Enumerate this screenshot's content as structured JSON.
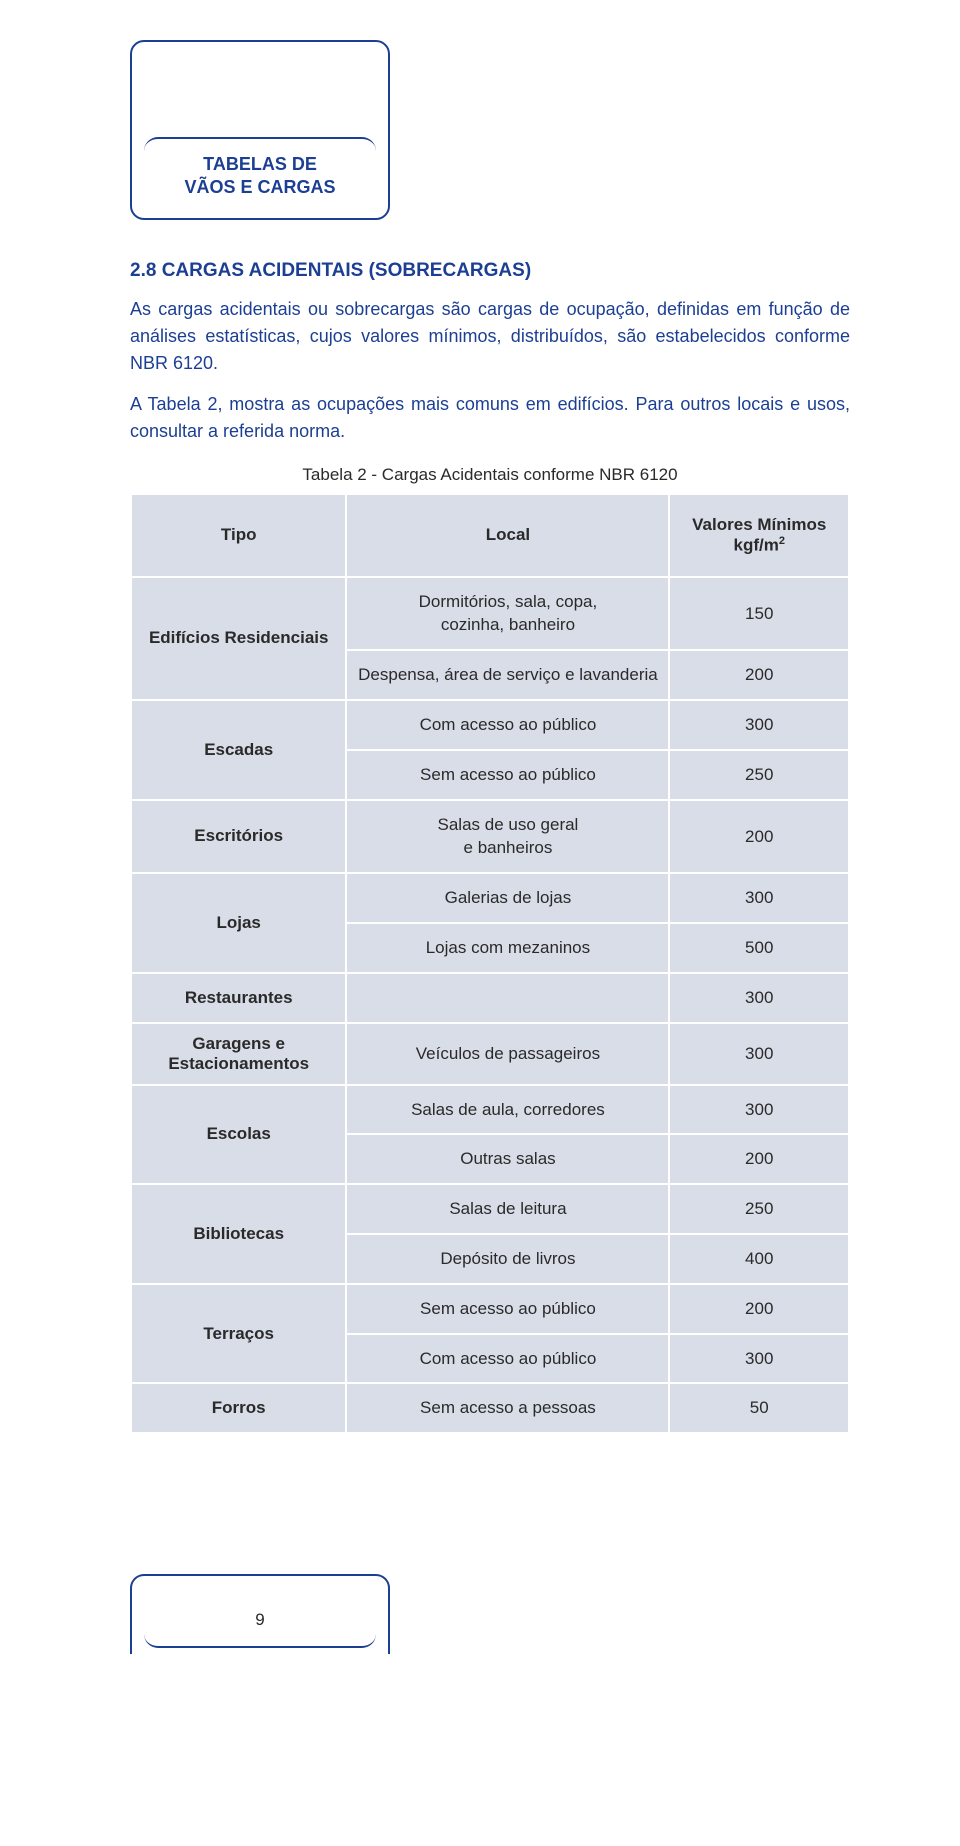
{
  "colors": {
    "brand": "#1c3f94",
    "table_bg": "#d8dde8",
    "table_border": "#ffffff",
    "page_bg": "#ffffff",
    "text": "#2a2a2a"
  },
  "header": {
    "line1": "TABELAS DE",
    "line2": "VÃOS E CARGAS"
  },
  "section": {
    "title": "2.8 CARGAS ACIDENTAIS (SOBRECARGAS)",
    "para1": "As cargas acidentais ou sobrecargas são cargas de ocupação, definidas em função de análises estatísticas, cujos valores mínimos, distribuídos, são estabelecidos conforme NBR 6120.",
    "para2": "A Tabela 2, mostra as ocupações mais comuns em edifícios. Para outros locais e usos, consultar a referida norma."
  },
  "table": {
    "caption": "Tabela 2 - Cargas Acidentais conforme NBR 6120",
    "columns": [
      "Tipo",
      "Local",
      "Valores Mínimos kgf/m²"
    ],
    "header_val_line1": "Valores Mínimos",
    "header_val_line2_prefix": "kgf/m",
    "header_val_line2_sup": "2",
    "rows": [
      {
        "tipo": "Edifícios Residenciais",
        "locals": [
          "Dormitórios, sala, copa, cozinha, banheiro",
          "Despensa, área de serviço e lavanderia"
        ],
        "values": [
          "150",
          "200"
        ]
      },
      {
        "tipo": "Escadas",
        "locals": [
          "Com acesso ao público",
          "Sem acesso ao público"
        ],
        "values": [
          "300",
          "250"
        ]
      },
      {
        "tipo": "Escritórios",
        "locals": [
          "Salas de uso geral e banheiros"
        ],
        "values": [
          "200"
        ]
      },
      {
        "tipo": "Lojas",
        "locals": [
          "Galerias de lojas",
          "Lojas com mezaninos"
        ],
        "values": [
          "300",
          "500"
        ]
      },
      {
        "tipo": "Restaurantes",
        "locals": [
          ""
        ],
        "values": [
          "300"
        ]
      },
      {
        "tipo": "Garagens e Estacionamentos",
        "locals": [
          "Veículos de passageiros"
        ],
        "values": [
          "300"
        ]
      },
      {
        "tipo": "Escolas",
        "locals": [
          "Salas de aula, corredores",
          "Outras salas"
        ],
        "values": [
          "300",
          "200"
        ]
      },
      {
        "tipo": "Bibliotecas",
        "locals": [
          "Salas de leitura",
          "Depósito de livros"
        ],
        "values": [
          "250",
          "400"
        ]
      },
      {
        "tipo": "Terraços",
        "locals": [
          "Sem acesso ao público",
          "Com acesso ao público"
        ],
        "values": [
          "200",
          "300"
        ]
      },
      {
        "tipo": "Forros",
        "locals": [
          "Sem acesso a pessoas"
        ],
        "values": [
          "50"
        ]
      }
    ]
  },
  "footer": {
    "page_num": "9"
  }
}
